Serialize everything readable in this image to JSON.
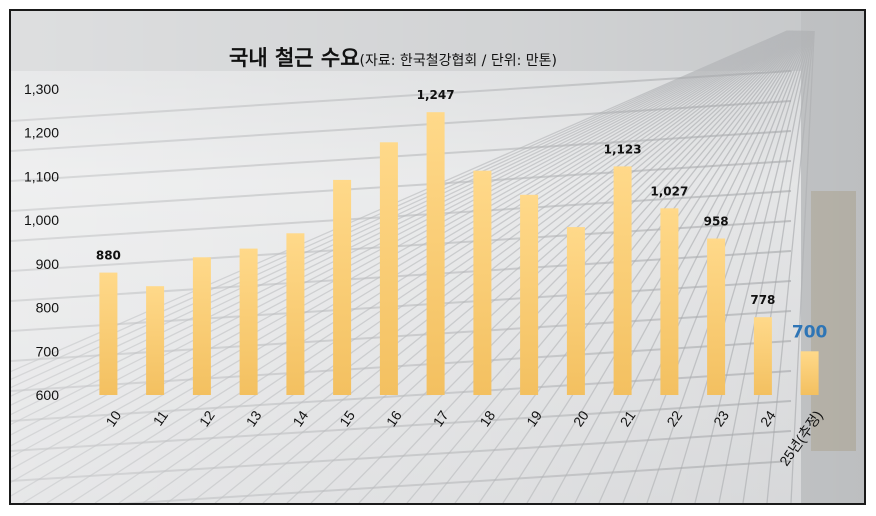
{
  "title": "국내 철근 수요",
  "subtitle": "(자료: 한국철강협회 / 단위: 만톤)",
  "colors": {
    "bar_top": "#ffd98a",
    "bar_bottom": "#f3c060",
    "highlight_label": "#2e75b6",
    "frame": "#1a1a1a"
  },
  "chart_data": {
    "type": "bar",
    "title": "국내 철근 수요",
    "subtitle": "(자료: 한국철강협회 / 단위: 만톤)",
    "categories": [
      "10",
      "11",
      "12",
      "13",
      "14",
      "15",
      "16",
      "17",
      "18",
      "19",
      "20",
      "21",
      "22",
      "23",
      "24",
      "25년(추정)"
    ],
    "values": [
      880,
      849,
      915,
      935,
      970,
      1092,
      1178,
      1247,
      1113,
      1058,
      984,
      1123,
      1027,
      958,
      778,
      700
    ],
    "data_labels": [
      "880",
      "",
      "",
      "",
      "",
      "",
      "",
      "1,247",
      "",
      "",
      "",
      "1,123",
      "1,027",
      "958",
      "778",
      "700"
    ],
    "highlight_index": 15,
    "ylim": [
      600,
      1300
    ],
    "yticks": [
      "600",
      "700",
      "800",
      "900",
      "1,000",
      "1,100",
      "1,200",
      "1,300"
    ],
    "ytick_values": [
      600,
      700,
      800,
      900,
      1000,
      1100,
      1200,
      1300
    ],
    "grid": false,
    "legend": "none",
    "background": "photo of steel rebar stacks"
  }
}
